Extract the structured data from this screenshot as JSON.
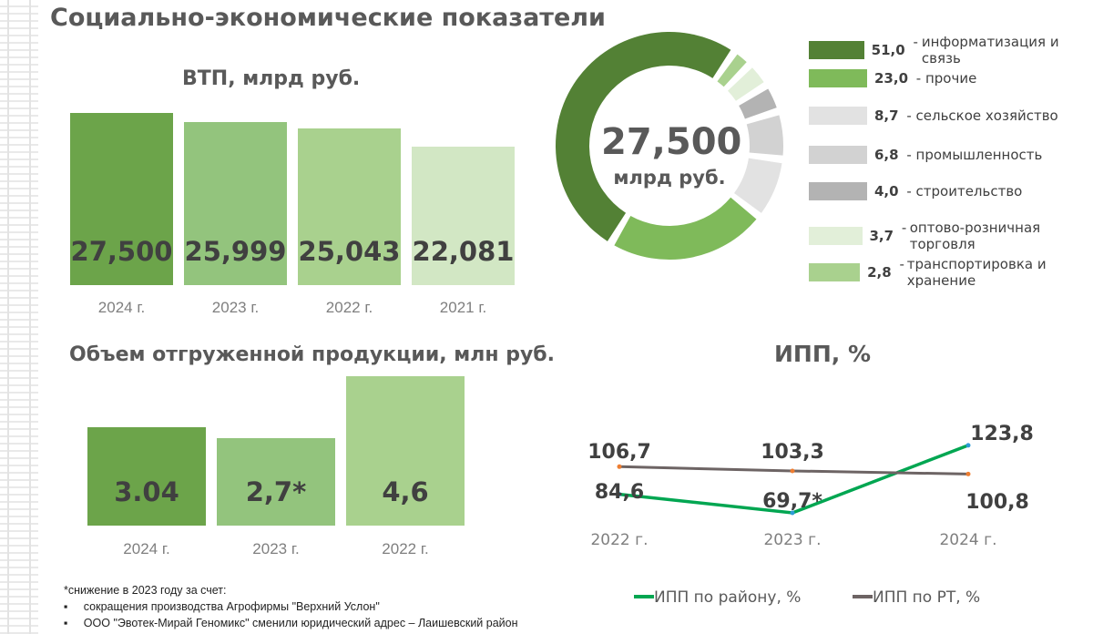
{
  "title": "Социально-экономические показатели",
  "vtp": {
    "title": "ВТП, млрд руб.",
    "bars": [
      {
        "year": "2024 г.",
        "value": 27500,
        "label": "27,500",
        "color": "#6ca44a"
      },
      {
        "year": "2023 г.",
        "value": 25999,
        "label": "25,999",
        "color": "#93c47d"
      },
      {
        "year": "2022 г.",
        "value": 25043,
        "label": "25,043",
        "color": "#a9d18e"
      },
      {
        "year": "2021 г.",
        "value": 22081,
        "label": "22,081",
        "color": "#d2e7c4"
      }
    ]
  },
  "donut": {
    "center_value": "27,500",
    "center_unit": "млрд руб.",
    "segments": [
      {
        "value": 51.0,
        "label": "51,0",
        "name": "информатизация и связь",
        "color": "#538135"
      },
      {
        "value": 23.0,
        "label": "23,0",
        "name": "прочие",
        "color": "#7fba5a"
      },
      {
        "value": 8.7,
        "label": "8,7",
        "name": "сельское хозяйство",
        "color": "#e2e2e2"
      },
      {
        "value": 6.8,
        "label": "6,8",
        "name": "промышленность",
        "color": "#d2d2d2"
      },
      {
        "value": 4.0,
        "label": "4,0",
        "name": "строительство",
        "color": "#b3b3b3"
      },
      {
        "value": 3.7,
        "label": "3,7",
        "name": "оптово-розничная торговля",
        "color": "#e2efd9"
      },
      {
        "value": 2.8,
        "label": "2,8",
        "name": "транспортировка и хранение",
        "color": "#a9d18e"
      }
    ]
  },
  "shipment": {
    "title": "Объем отгруженной продукции, млн руб.",
    "bars": [
      {
        "year": "2024 г.",
        "value": 3.04,
        "label": "3.04",
        "color": "#6ca44a"
      },
      {
        "year": "2023 г.",
        "value": 2.7,
        "label": "2,7*",
        "color": "#93c47d"
      },
      {
        "year": "2022 г.",
        "value": 4.6,
        "label": "4,6",
        "color": "#a9d18e"
      }
    ]
  },
  "chart_data": {
    "type": "line",
    "title": "ИПП, %",
    "categories": [
      "2022 г.",
      "2023 г.",
      "2024 г."
    ],
    "series": [
      {
        "name": "ИПП по району, %",
        "values": [
          84.6,
          69.7,
          123.8
        ],
        "labels": [
          "84,6",
          "69,7*",
          "123,8"
        ],
        "color": "#00a651"
      },
      {
        "name": "ИПП по РТ, %",
        "values": [
          106.7,
          103.3,
          100.8
        ],
        "labels": [
          "106,7",
          "103,3",
          "100,8"
        ],
        "color": "#6d6464"
      }
    ]
  },
  "footnote": {
    "title": "*снижение в 2023 году за счет:",
    "items": [
      "сокращения производства Агрофирмы \"Верхний Услон\"",
      "ООО \"Эвотек-Мирай Геномикс\" сменили юридический адрес – Лаишевский район"
    ]
  }
}
